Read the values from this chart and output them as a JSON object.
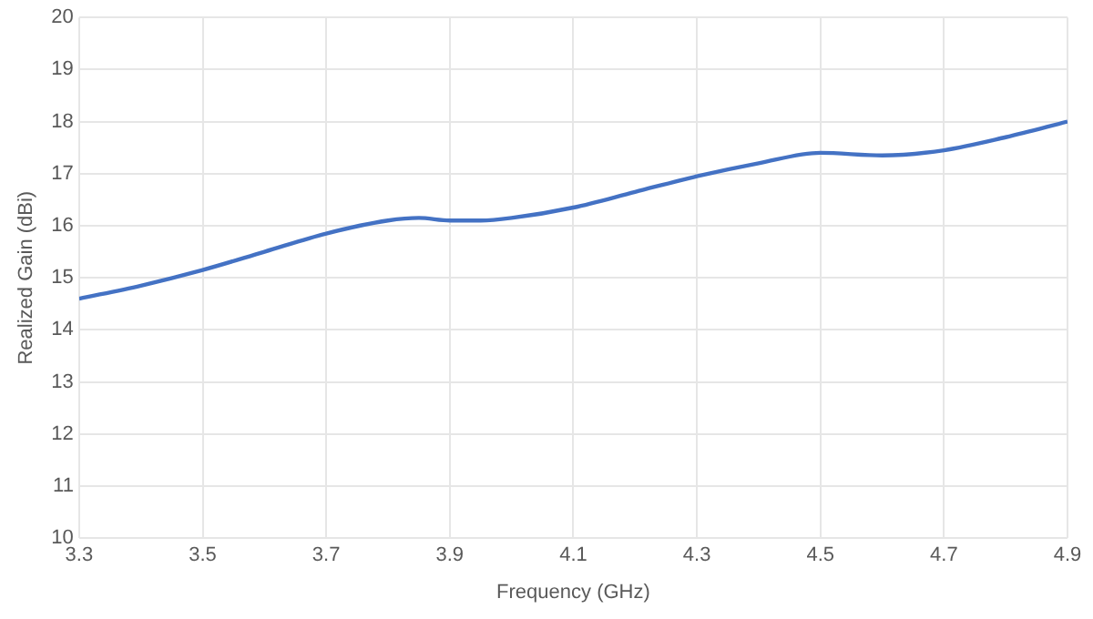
{
  "chart_data": {
    "type": "line",
    "xlabel": "Frequency (GHz)",
    "ylabel": "Realized Gain (dBi)",
    "x": [
      3.3,
      3.4,
      3.5,
      3.6,
      3.7,
      3.8,
      3.85,
      3.9,
      3.95,
      4.0,
      4.1,
      4.2,
      4.3,
      4.4,
      4.5,
      4.6,
      4.7,
      4.8,
      4.9
    ],
    "series": [
      {
        "color": "#4472c4",
        "values": [
          14.6,
          14.85,
          15.15,
          15.5,
          15.85,
          16.1,
          16.15,
          16.1,
          16.1,
          16.15,
          16.35,
          16.65,
          16.95,
          17.2,
          17.4,
          17.35,
          17.45,
          17.7,
          18.0
        ]
      }
    ],
    "xlim": [
      3.3,
      4.9
    ],
    "xticks": [
      3.3,
      3.5,
      3.7,
      3.9,
      4.1,
      4.3,
      4.5,
      4.7,
      4.9
    ],
    "ylim": [
      10,
      20
    ],
    "yticks": [
      10,
      11,
      12,
      13,
      14,
      15,
      16,
      17,
      18,
      19,
      20
    ],
    "grid": true,
    "legend": false,
    "marker": "none",
    "line_style": "solid"
  }
}
